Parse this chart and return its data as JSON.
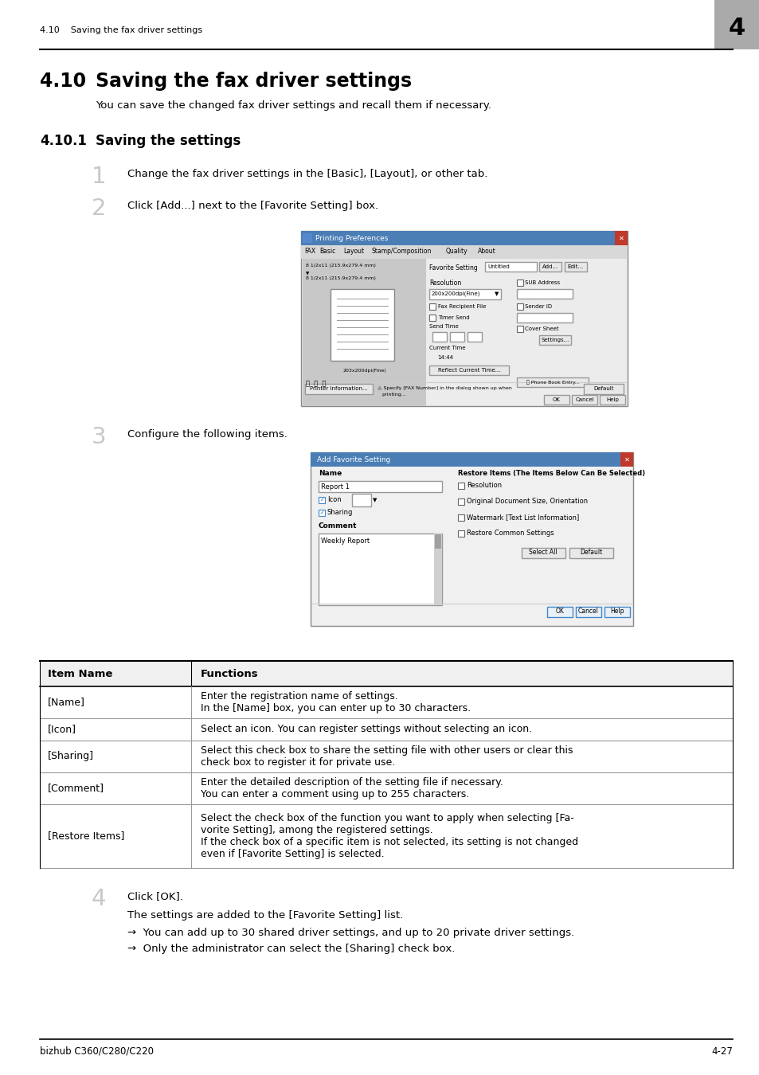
{
  "page_bg": "#ffffff",
  "header_text": "4.10    Saving the fax driver settings",
  "header_number": "4",
  "header_number_bg": "#aaaaaa",
  "footer_left": "bizhub C360/C280/C220",
  "footer_right": "4-27",
  "section_num": "4.10",
  "section_title": "Saving the fax driver settings",
  "section_subtitle": "You can save the changed fax driver settings and recall them if necessary.",
  "subsection_num": "4.10.1",
  "subsection_title": "Saving the settings",
  "step1_num": "1",
  "step1_text": "Change the fax driver settings in the [Basic], [Layout], or other tab.",
  "step2_num": "2",
  "step2_text": "Click [Add...] next to the [Favorite Setting] box.",
  "step3_num": "3",
  "step3_text": "Configure the following items.",
  "step4_num": "4",
  "step4_text": "Click [OK].",
  "step4_sub1": "The settings are added to the [Favorite Setting] list.",
  "step4_bullet1": "→  You can add up to 30 shared driver settings, and up to 20 private driver settings.",
  "step4_bullet2": "→  Only the administrator can select the [Sharing] check box.",
  "table_headers": [
    "Item Name",
    "Functions"
  ],
  "table_rows": [
    [
      "[Name]",
      "Enter the registration name of settings.\nIn the [Name] box, you can enter up to 30 characters."
    ],
    [
      "[Icon]",
      "Select an icon. You can register settings without selecting an icon."
    ],
    [
      "[Sharing]",
      "Select this check box to share the setting file with other users or clear this\ncheck box to register it for private use."
    ],
    [
      "[Comment]",
      "Enter the detailed description of the setting file if necessary.\nYou can enter a comment using up to 255 characters."
    ],
    [
      "[Restore Items]",
      "Select the check box of the function you want to apply when selecting [Fa-\nvorite Setting], among the registered settings.\nIf the check box of a specific item is not selected, its setting is not changed\neven if [Favorite Setting] is selected."
    ]
  ],
  "table_row_heights": [
    40,
    28,
    40,
    40,
    80
  ]
}
